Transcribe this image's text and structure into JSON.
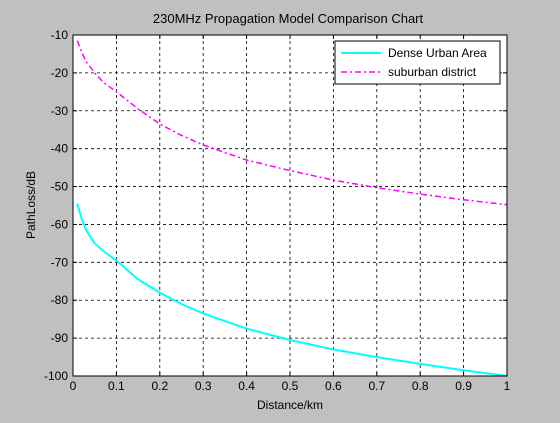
{
  "chart_data": {
    "type": "line",
    "title": "230MHz Propagation Model Comparison Chart",
    "xlabel": "Distance/km",
    "ylabel": "PathLoss/dB",
    "xlim": [
      0,
      1
    ],
    "ylim": [
      -100,
      -10
    ],
    "xticks": [
      0,
      0.1,
      0.2,
      0.3,
      0.4,
      0.5,
      0.6,
      0.7,
      0.8,
      0.9,
      1
    ],
    "xtick_labels": [
      "0",
      "0.1",
      "0.2",
      "0.3",
      "0.4",
      "0.5",
      "0.6",
      "0.7",
      "0.8",
      "0.9",
      "1"
    ],
    "yticks": [
      -10,
      -20,
      -30,
      -40,
      -50,
      -60,
      -70,
      -80,
      -90,
      -100
    ],
    "ytick_labels": [
      "-10",
      "-20",
      "-30",
      "-40",
      "-50",
      "-60",
      "-70",
      "-80",
      "-90",
      "-100"
    ],
    "grid": true,
    "legend_position": "top-right",
    "series": [
      {
        "name": "Dense Urban Area",
        "color": "#00ffff",
        "line_style": "solid",
        "x": [
          0.01,
          0.02,
          0.03,
          0.05,
          0.07,
          0.1,
          0.15,
          0.2,
          0.25,
          0.3,
          0.35,
          0.4,
          0.5,
          0.6,
          0.7,
          0.8,
          0.9,
          1.0
        ],
        "y": [
          -54.5,
          -58.5,
          -61.5,
          -65,
          -67,
          -69.5,
          -74.5,
          -78,
          -81,
          -83.5,
          -85.5,
          -87.5,
          -90.5,
          -93,
          -95,
          -96.8,
          -98.5,
          -100
        ]
      },
      {
        "name": "suburban district",
        "color": "#ff00ff",
        "line_style": "dashdot",
        "x": [
          0.01,
          0.02,
          0.03,
          0.05,
          0.07,
          0.1,
          0.15,
          0.2,
          0.25,
          0.3,
          0.35,
          0.4,
          0.5,
          0.6,
          0.7,
          0.8,
          0.9,
          1.0
        ],
        "y": [
          -11.5,
          -14.5,
          -17,
          -20,
          -22.5,
          -25,
          -29.5,
          -33.5,
          -36.5,
          -39,
          -41,
          -43,
          -45.8,
          -48.3,
          -50.3,
          -52,
          -53.5,
          -54.8
        ]
      }
    ]
  }
}
